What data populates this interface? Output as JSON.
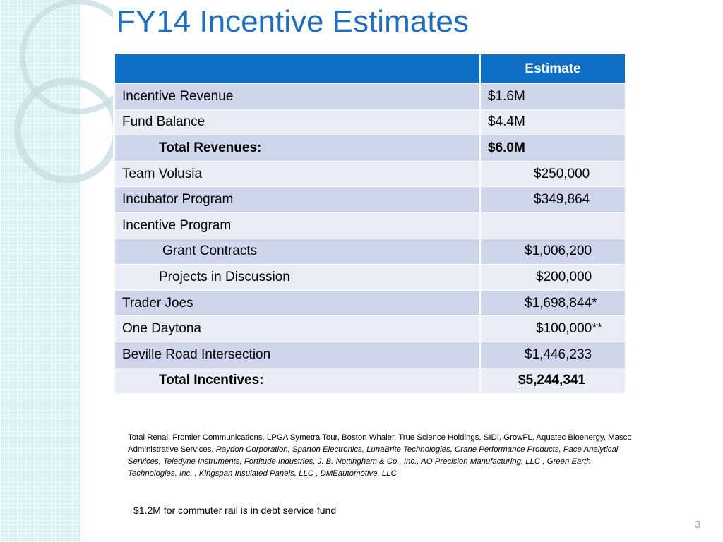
{
  "title": "FY14 Incentive Estimates",
  "table": {
    "header": [
      "Estimate"
    ],
    "rows": [
      [
        "Incentive Revenue",
        "$1.6M"
      ],
      [
        "Fund Balance",
        "$4.4M"
      ],
      [
        "Total Revenues:",
        "$6.0M"
      ],
      [
        "Team Volusia",
        "$250,000"
      ],
      [
        "Incubator Program",
        "$349,864"
      ],
      [
        "Incentive Program"
      ],
      [
        "Grant Contracts",
        "$1,006,200"
      ],
      [
        "Projects in Discussion",
        "$200,000"
      ],
      [
        "Trader Joes",
        "$1,698,844*"
      ],
      [
        "One Daytona",
        "$100,000**"
      ],
      [
        "Beville Road Intersection",
        "$1,446,233"
      ],
      [
        "Total Incentives:",
        "$5,244,341"
      ]
    ]
  },
  "footnote": {
    "plain": "Total Renal, Frontier Communications, LPGA Symetra Tour, Boston Whaler, True Science Holdings, SIDI,  GrowFL, Aquatec Bioenergy, Masco Administrative Services, ",
    "italic": "Raydon Corporation,  Sparton Electronics,  LunaBrite Technologies, Crane Performance Products,  Pace Analytical Services, Teledyne Instruments, Fortitude Industries, J. B. Nottingham & Co., Inc., AO Precision Manufacturing, LLC , Green Earth Technologies, Inc. , Kingspan Insulated Panels, LLC , DMEautomotive, LLC"
  },
  "note": "$1.2M for commuter rail is in debt service fund",
  "page_number": "3"
}
